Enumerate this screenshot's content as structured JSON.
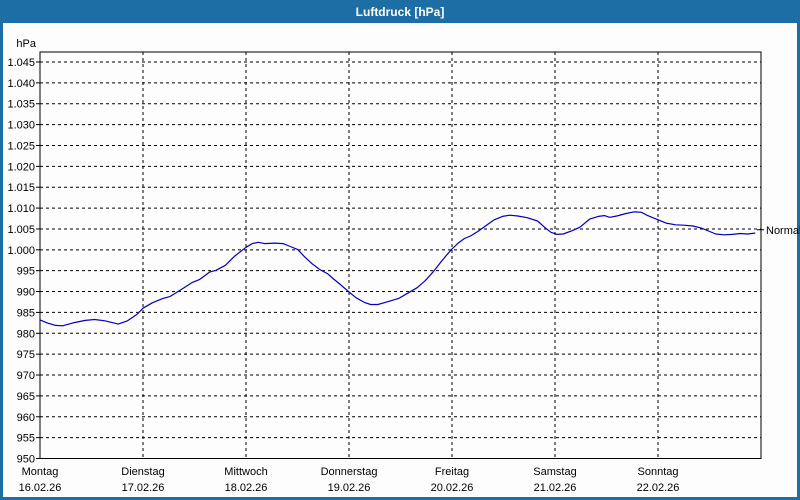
{
  "window": {
    "title": "Luftdruck [hPa]"
  },
  "colors": {
    "titlebar": "#1c6ea4",
    "border": "#1c6ea4",
    "background": "#fdfdfd",
    "line": "#0000bf",
    "grid": "#000000",
    "text": "#000000",
    "title_text": "#ffffff"
  },
  "chart_data": {
    "type": "line",
    "title": "Luftdruck [hPa]",
    "unit_label": "hPa",
    "ylim": [
      950,
      1045
    ],
    "ytick_step": 5,
    "grid": "dashed",
    "yticks": [
      {
        "value": 1045,
        "label": "1.045"
      },
      {
        "value": 1040,
        "label": "1.040"
      },
      {
        "value": 1035,
        "label": "1.035"
      },
      {
        "value": 1030,
        "label": "1.030"
      },
      {
        "value": 1025,
        "label": "1.025"
      },
      {
        "value": 1020,
        "label": "1.020"
      },
      {
        "value": 1015,
        "label": "1.015"
      },
      {
        "value": 1010,
        "label": "1.010"
      },
      {
        "value": 1005,
        "label": "1.005"
      },
      {
        "value": 1000,
        "label": "1.000"
      },
      {
        "value": 995,
        "label": "995"
      },
      {
        "value": 990,
        "label": "990"
      },
      {
        "value": 985,
        "label": "985"
      },
      {
        "value": 980,
        "label": "980"
      },
      {
        "value": 975,
        "label": "975"
      },
      {
        "value": 970,
        "label": "970"
      },
      {
        "value": 965,
        "label": "965"
      },
      {
        "value": 960,
        "label": "960"
      },
      {
        "value": 955,
        "label": "955"
      },
      {
        "value": 950,
        "label": "950"
      }
    ],
    "days": [
      {
        "name": "Montag",
        "date": "16.02.26"
      },
      {
        "name": "Dienstag",
        "date": "17.02.26"
      },
      {
        "name": "Mittwoch",
        "date": "18.02.26"
      },
      {
        "name": "Donnerstag",
        "date": "19.02.26"
      },
      {
        "name": "Freitag",
        "date": "20.02.26"
      },
      {
        "name": "Samstag",
        "date": "21.02.26"
      },
      {
        "name": "Sonntag",
        "date": "22.02.26"
      }
    ],
    "right_marker": {
      "label": "Normal",
      "value": 1004.8
    },
    "series": [
      {
        "name": "Luftdruck",
        "color": "#0000bf",
        "points": [
          [
            0.0,
            983.2
          ],
          [
            0.07,
            982.5
          ],
          [
            0.15,
            981.9
          ],
          [
            0.22,
            981.8
          ],
          [
            0.32,
            982.5
          ],
          [
            0.44,
            983.1
          ],
          [
            0.53,
            983.3
          ],
          [
            0.63,
            983.0
          ],
          [
            0.76,
            982.2
          ],
          [
            0.85,
            983.0
          ],
          [
            0.94,
            984.5
          ],
          [
            1.0,
            986.0
          ],
          [
            1.09,
            987.3
          ],
          [
            1.19,
            988.3
          ],
          [
            1.26,
            988.8
          ],
          [
            1.36,
            990.3
          ],
          [
            1.48,
            992.2
          ],
          [
            1.55,
            992.9
          ],
          [
            1.65,
            994.7
          ],
          [
            1.71,
            995.1
          ],
          [
            1.8,
            996.3
          ],
          [
            1.89,
            998.5
          ],
          [
            2.0,
            1000.6
          ],
          [
            2.06,
            1001.5
          ],
          [
            2.12,
            1001.8
          ],
          [
            2.18,
            1001.5
          ],
          [
            2.28,
            1001.6
          ],
          [
            2.36,
            1001.5
          ],
          [
            2.43,
            1000.8
          ],
          [
            2.5,
            1000.1
          ],
          [
            2.57,
            998.3
          ],
          [
            2.65,
            996.5
          ],
          [
            2.72,
            995.2
          ],
          [
            2.79,
            994.3
          ],
          [
            2.85,
            993.0
          ],
          [
            2.92,
            991.6
          ],
          [
            3.0,
            989.9
          ],
          [
            3.07,
            988.5
          ],
          [
            3.15,
            987.4
          ],
          [
            3.21,
            986.9
          ],
          [
            3.28,
            986.9
          ],
          [
            3.38,
            987.6
          ],
          [
            3.48,
            988.3
          ],
          [
            3.57,
            989.6
          ],
          [
            3.66,
            990.9
          ],
          [
            3.74,
            992.6
          ],
          [
            3.82,
            994.8
          ],
          [
            3.89,
            997.0
          ],
          [
            3.95,
            998.8
          ],
          [
            4.0,
            1000.2
          ],
          [
            4.06,
            1001.6
          ],
          [
            4.12,
            1002.7
          ],
          [
            4.18,
            1003.3
          ],
          [
            4.25,
            1004.4
          ],
          [
            4.33,
            1005.8
          ],
          [
            4.41,
            1007.2
          ],
          [
            4.49,
            1008.0
          ],
          [
            4.56,
            1008.3
          ],
          [
            4.64,
            1008.1
          ],
          [
            4.73,
            1007.7
          ],
          [
            4.83,
            1006.9
          ],
          [
            4.9,
            1005.4
          ],
          [
            4.96,
            1004.2
          ],
          [
            5.02,
            1003.7
          ],
          [
            5.08,
            1003.8
          ],
          [
            5.17,
            1004.6
          ],
          [
            5.24,
            1005.4
          ],
          [
            5.34,
            1007.4
          ],
          [
            5.42,
            1008.0
          ],
          [
            5.48,
            1008.2
          ],
          [
            5.53,
            1007.8
          ],
          [
            5.6,
            1008.1
          ],
          [
            5.69,
            1008.7
          ],
          [
            5.77,
            1009.1
          ],
          [
            5.84,
            1009.0
          ],
          [
            5.9,
            1008.2
          ],
          [
            6.0,
            1007.2
          ],
          [
            6.08,
            1006.4
          ],
          [
            6.17,
            1006.0
          ],
          [
            6.25,
            1005.9
          ],
          [
            6.34,
            1005.7
          ],
          [
            6.42,
            1005.2
          ],
          [
            6.49,
            1004.5
          ],
          [
            6.56,
            1003.8
          ],
          [
            6.64,
            1003.6
          ],
          [
            6.72,
            1003.7
          ],
          [
            6.8,
            1003.9
          ],
          [
            6.87,
            1003.8
          ],
          [
            6.94,
            1004.0
          ]
        ]
      }
    ]
  }
}
